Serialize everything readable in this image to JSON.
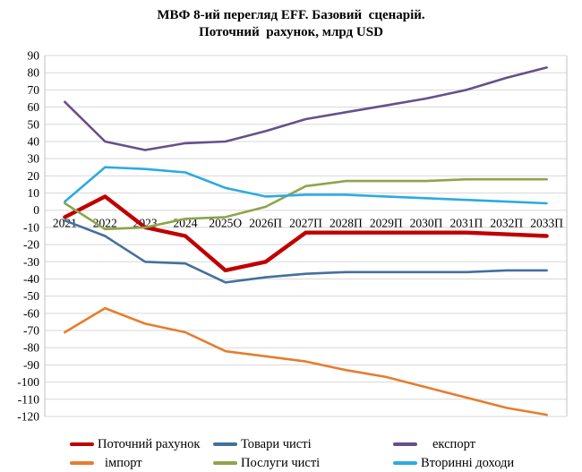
{
  "title": {
    "line1": "МВФ 8-ий перегляд EFF. Базовий  сценарій.",
    "line2": "Поточний  рахунок, млрд USD"
  },
  "chart_data": {
    "type": "line",
    "title": "МВФ 8-ий перегляд EFF. Базовий сценарій. Поточний рахунок, млрд USD",
    "unit": "млрд USD",
    "categories": [
      "2021",
      "2022",
      "2023",
      "2024",
      "2025О",
      "2026П",
      "2027П",
      "2028П",
      "2029П",
      "2030П",
      "2031П",
      "2032П",
      "2033П"
    ],
    "series": [
      {
        "name": "Поточний рахунок",
        "color": "#C00000",
        "values": [
          -4,
          8,
          -10,
          -15,
          -35,
          -30,
          -13,
          -13,
          -13,
          -13,
          -13,
          -14,
          -15
        ]
      },
      {
        "name": "Товари чисті",
        "color": "#44709D",
        "values": [
          -6,
          -15,
          -30,
          -31,
          -42,
          -39,
          -37,
          -36,
          -36,
          -36,
          -36,
          -35,
          -35
        ]
      },
      {
        "name": "експорт",
        "color": "#655189",
        "values": [
          63,
          40,
          35,
          39,
          40,
          46,
          53,
          57,
          61,
          65,
          70,
          77,
          83
        ]
      },
      {
        "name": "імпорт",
        "color": "#E67D2D",
        "values": [
          -71,
          -57,
          -66,
          -71,
          -82,
          -85,
          -88,
          -93,
          -97,
          -103,
          -109,
          -115,
          -119
        ]
      },
      {
        "name": "Послуги чисті",
        "color": "#8CA54B",
        "values": [
          4,
          -11,
          -10,
          -5,
          -4,
          2,
          14,
          17,
          17,
          17,
          18,
          18,
          18
        ]
      },
      {
        "name": "Вторинні доходи",
        "color": "#2DAAE1",
        "values": [
          5,
          25,
          24,
          22,
          13,
          8,
          9,
          9,
          8,
          7,
          6,
          5,
          4
        ]
      }
    ],
    "ylim": [
      -120,
      90
    ],
    "ytick_step": 10,
    "grid": "horizontal",
    "gridline_color": "#D8D8D8",
    "border_color": "#BFBFBF",
    "legend_position": "bottom"
  }
}
